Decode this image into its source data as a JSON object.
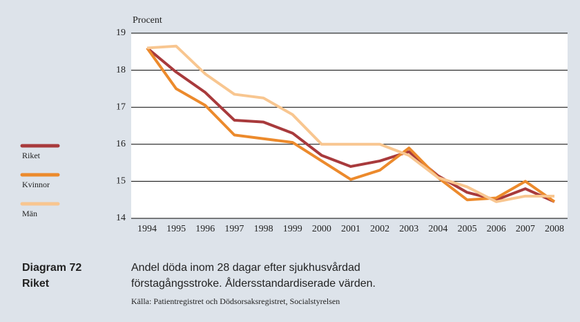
{
  "chart_data": {
    "type": "line",
    "y_axis_label": "Procent",
    "categories": [
      "1994",
      "1995",
      "1996",
      "1997",
      "1998",
      "1999",
      "2000",
      "2001",
      "2002",
      "2003",
      "2004",
      "2005",
      "2006",
      "2007",
      "2008"
    ],
    "series": [
      {
        "name": "Riket",
        "color": "#a83a3c",
        "values": [
          18.6,
          17.95,
          17.4,
          16.65,
          16.6,
          16.3,
          15.7,
          15.4,
          15.55,
          15.8,
          15.15,
          14.7,
          14.5,
          14.8,
          14.45
        ]
      },
      {
        "name": "Kvinnor",
        "color": "#ec8a2c",
        "values": [
          18.6,
          17.5,
          17.05,
          16.25,
          16.15,
          16.05,
          15.55,
          15.05,
          15.3,
          15.9,
          15.1,
          14.5,
          14.55,
          15.0,
          14.45
        ]
      },
      {
        "name": "Män",
        "color": "#f8c690",
        "values": [
          18.6,
          18.65,
          17.9,
          17.35,
          17.25,
          16.8,
          16.0,
          16.0,
          16.0,
          15.7,
          15.1,
          14.85,
          14.45,
          14.6,
          14.6
        ]
      }
    ],
    "ylim": [
      14,
      19
    ],
    "yticks": [
      14,
      15,
      16,
      17,
      18,
      19
    ],
    "grid": true,
    "diagram_label": "Diagram 72",
    "diagram_sublabel": "Riket",
    "caption_line1": "Andel döda inom 28 dagar efter sjukhusvårdad",
    "caption_line2": "förstagångsstroke. Åldersstandardiserade värden.",
    "source": "Källa: Patientregistret och Dödsorsaksregistret, Socialstyrelsen"
  }
}
